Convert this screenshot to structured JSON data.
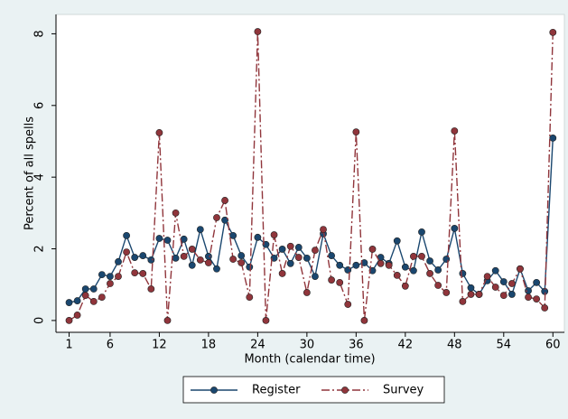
{
  "chart_data": {
    "type": "line",
    "x": [
      1,
      2,
      3,
      4,
      5,
      6,
      7,
      8,
      9,
      10,
      11,
      12,
      13,
      14,
      15,
      16,
      17,
      18,
      19,
      20,
      21,
      22,
      23,
      24,
      25,
      26,
      27,
      28,
      29,
      30,
      31,
      32,
      33,
      34,
      35,
      36,
      37,
      38,
      39,
      40,
      41,
      42,
      43,
      44,
      45,
      46,
      47,
      48,
      49,
      50,
      51,
      52,
      53,
      54,
      55,
      56,
      57,
      58,
      59,
      60
    ],
    "series": [
      {
        "name": "Register",
        "color": "#1a476f",
        "dash": "none",
        "values": [
          0.5,
          0.55,
          0.88,
          0.88,
          1.28,
          1.23,
          1.64,
          2.37,
          1.76,
          1.81,
          1.69,
          2.29,
          2.24,
          1.74,
          2.27,
          1.54,
          2.54,
          1.79,
          1.44,
          2.8,
          2.37,
          1.81,
          1.49,
          2.32,
          2.12,
          1.74,
          1.99,
          1.59,
          2.04,
          1.74,
          1.23,
          2.42,
          1.81,
          1.54,
          1.41,
          1.54,
          1.61,
          1.39,
          1.76,
          1.59,
          2.22,
          1.49,
          1.39,
          2.47,
          1.66,
          1.41,
          1.71,
          2.57,
          1.31,
          0.91,
          0.73,
          1.11,
          1.39,
          1.08,
          0.73,
          1.44,
          0.83,
          1.06,
          0.81,
          5.09
        ]
      },
      {
        "name": "Survey",
        "color": "#90353b",
        "dash": "9 3 2 3",
        "values": [
          0,
          0.15,
          0.7,
          0.53,
          0.65,
          1.03,
          1.23,
          1.91,
          1.33,
          1.31,
          0.88,
          5.24,
          0,
          3.0,
          1.79,
          1.99,
          1.69,
          1.61,
          2.87,
          3.35,
          1.71,
          1.61,
          0.65,
          8.06,
          0,
          2.39,
          1.31,
          2.07,
          1.76,
          0.78,
          1.96,
          2.54,
          1.13,
          1.06,
          0.45,
          5.26,
          0,
          1.99,
          1.59,
          1.54,
          1.26,
          0.96,
          1.79,
          1.79,
          1.31,
          0.98,
          0.78,
          5.29,
          0.53,
          0.73,
          0.73,
          1.23,
          0.93,
          0.7,
          1.03,
          1.44,
          0.65,
          0.6,
          0.35,
          8.04
        ]
      }
    ],
    "xlabel": "Month (calendar time)",
    "ylabel": "Percent of all spells",
    "xlim": [
      -0.6,
      61.4
    ],
    "xticks": [
      1,
      6,
      12,
      18,
      24,
      30,
      36,
      42,
      48,
      54,
      60
    ],
    "ylim": [
      -0.33,
      8.54
    ],
    "yticks": [
      0,
      2,
      4,
      6,
      8
    ],
    "grid": false,
    "legend": "bottom"
  }
}
